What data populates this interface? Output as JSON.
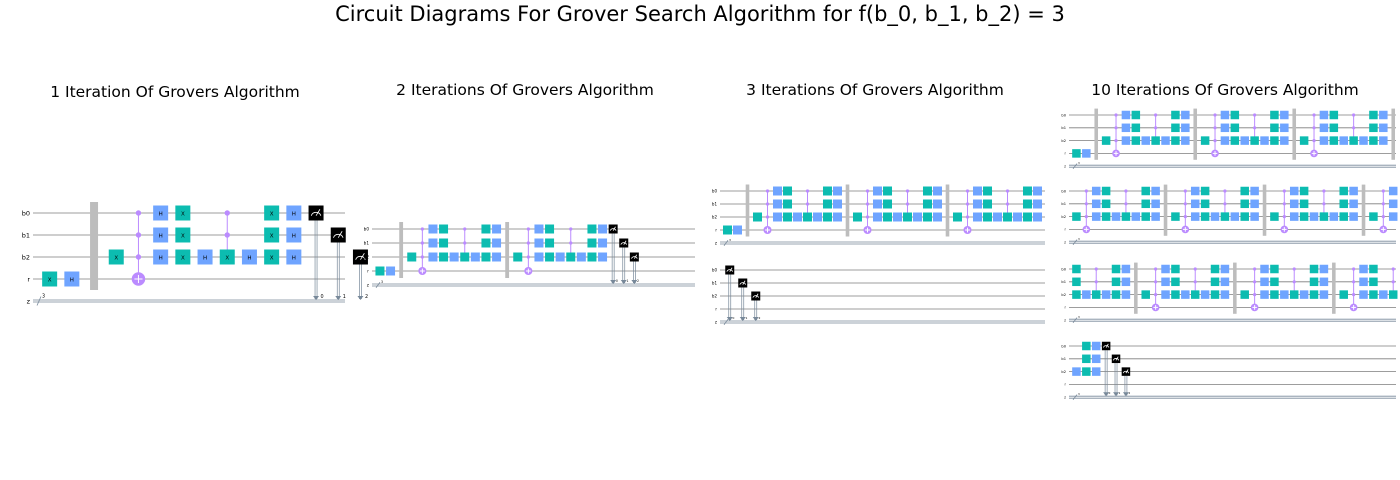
{
  "title": "Circuit Diagrams For Grover Search Algorithm for f(b_0, b_1, b_2) = 3",
  "panels": [
    {
      "title": "1 Iteration Of Grovers Algorithm",
      "rows": 1
    },
    {
      "title": "2 Iterations Of Grovers Algorithm",
      "rows": 1
    },
    {
      "title": "3 Iterations Of Grovers Algorithm",
      "rows": 2
    },
    {
      "title": "10 Iterations Of Grovers Algorithm",
      "rows": 4
    }
  ],
  "wire_labels": [
    "b0",
    "b1",
    "b2",
    "r",
    "z"
  ],
  "classical_bits": "3",
  "measure_indices": [
    "0",
    "1",
    "2"
  ],
  "gate_labels": {
    "hadamard": "H",
    "x": "X"
  },
  "colors": {
    "hadamard": "#6fa4ff",
    "x": "#0cbcb0",
    "control": "#bb8bff",
    "measure": "#000000",
    "barrier": "#bdbdbd",
    "wire": "#7d7d7d",
    "classical": "#778899"
  }
}
